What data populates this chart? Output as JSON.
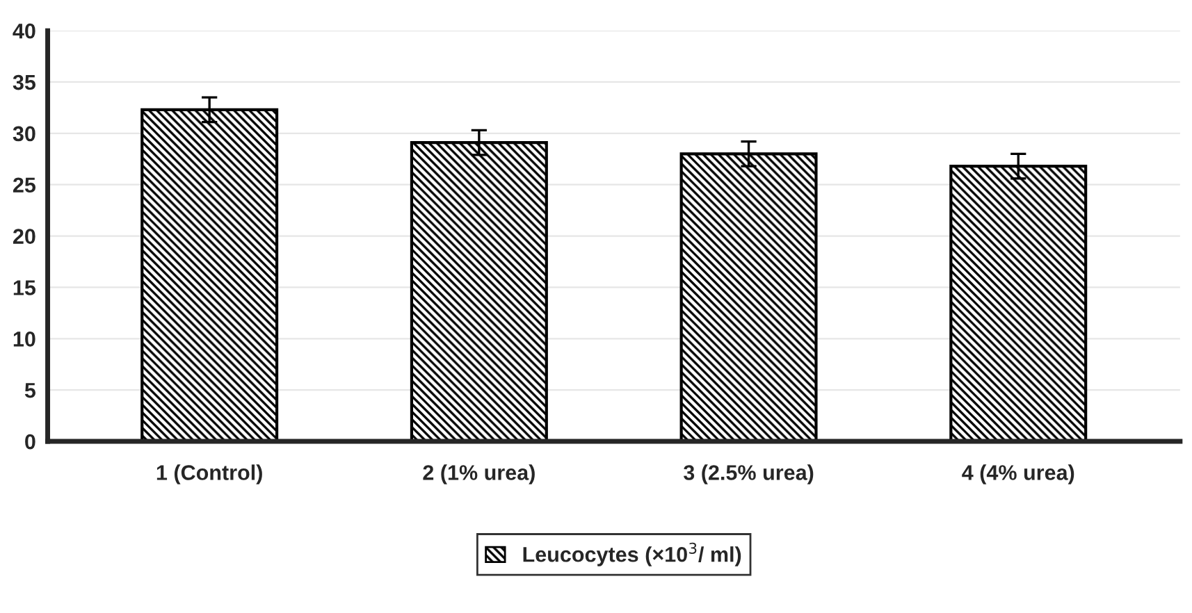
{
  "chart_data": {
    "type": "bar",
    "categories": [
      "1 (Control)",
      "2 (1% urea)",
      "3 (2.5% urea)",
      "4 (4% urea)"
    ],
    "series": [
      {
        "name": "Leucocytes (×10$^{3}$/ ml)",
        "color": "#000000",
        "values": [
          32.3,
          29.1,
          28.0,
          26.8
        ],
        "errors": [
          1.2,
          1.2,
          1.2,
          1.2
        ]
      }
    ],
    "ylim": [
      0,
      40
    ],
    "yticks": [
      0,
      5,
      10,
      15,
      20,
      25,
      30,
      35,
      40
    ],
    "grid": "y",
    "legend": "bottom"
  }
}
